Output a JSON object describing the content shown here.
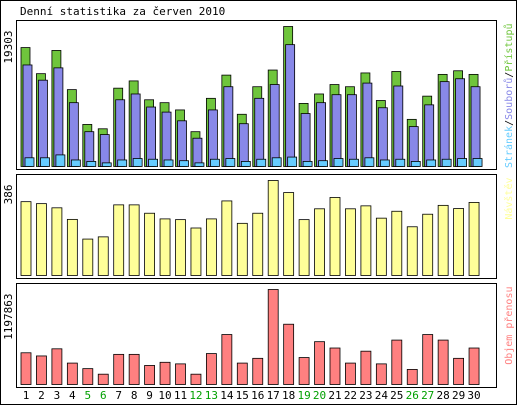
{
  "chart_data": {
    "type": "bar",
    "title": "Denní statistika za červen 2010",
    "colors": {
      "hits": "#6fc53c",
      "files": "#8888e8",
      "pages": "#66ccff",
      "visits": "#ffff99",
      "volume": "#ff8080",
      "weekend": "#00a000",
      "weekday": "#000000",
      "border": "#000000"
    },
    "categories": [
      "1",
      "2",
      "3",
      "4",
      "5",
      "6",
      "7",
      "8",
      "9",
      "10",
      "11",
      "12",
      "13",
      "14",
      "15",
      "16",
      "17",
      "18",
      "19",
      "20",
      "21",
      "22",
      "23",
      "24",
      "25",
      "26",
      "27",
      "28",
      "29",
      "30"
    ],
    "weekend_days": [
      "5",
      "6",
      "12",
      "13",
      "19",
      "20",
      "26",
      "27"
    ],
    "panels": [
      {
        "id": "top",
        "ylabel": "19303",
        "ylim": [
          0,
          19303
        ],
        "legend": [
          {
            "name": "Stránek",
            "color": "pages"
          },
          {
            "name": "Souborů",
            "color": "files"
          },
          {
            "name": "Přístupů",
            "color": "hits"
          }
        ],
        "legend_separator": "/",
        "series": [
          {
            "name": "Přístupů",
            "color": "hits",
            "values": [
              16400,
              12800,
              16000,
              10600,
              5800,
              5200,
              10800,
              11800,
              9200,
              8800,
              7800,
              4800,
              9400,
              12600,
              7200,
              11000,
              13300,
              19303,
              8700,
              10000,
              11300,
              11000,
              12900,
              9100,
              13100,
              6500,
              9700,
              12700,
              13200,
              12700
            ]
          },
          {
            "name": "Souborů",
            "color": "files",
            "values": [
              14000,
              11900,
              13600,
              8800,
              4800,
              4400,
              9200,
              10000,
              8200,
              7500,
              6300,
              3900,
              7800,
              11000,
              5900,
              9400,
              11300,
              16800,
              7300,
              8800,
              9900,
              9900,
              11500,
              8100,
              11100,
              5500,
              8500,
              11700,
              12100,
              11000
            ]
          },
          {
            "name": "Stránek",
            "color": "pages",
            "values": [
              1200,
              1200,
              1600,
              900,
              700,
              500,
              900,
              1100,
              1000,
              900,
              800,
              500,
              1000,
              1100,
              700,
              1000,
              1200,
              1300,
              700,
              800,
              1100,
              1000,
              1200,
              900,
              1000,
              700,
              900,
              1000,
              1100,
              1100
            ]
          }
        ]
      },
      {
        "id": "middle",
        "ylabel": "386",
        "ylim": [
          0,
          386
        ],
        "legend": [
          {
            "name": "Návštěv",
            "color": "visits"
          }
        ],
        "series": [
          {
            "name": "Návštěv",
            "color": "visits",
            "values": [
              300,
              292,
              275,
              228,
              148,
              157,
              287,
              287,
              253,
              230,
              227,
              193,
              230,
              303,
              212,
              253,
              386,
              337,
              227,
              271,
              317,
              271,
              283,
              233,
              261,
              198,
              249,
              285,
              272,
              297
            ]
          }
        ]
      },
      {
        "id": "bottom",
        "ylabel": "1197863",
        "ylim": [
          0,
          1197863
        ],
        "legend": [
          {
            "name": "Objem přenosu",
            "color": "volume"
          }
        ],
        "series": [
          {
            "name": "Objem přenosu",
            "color": "volume",
            "values": [
              400000,
              360000,
              450000,
              270000,
              200000,
              130000,
              380000,
              380000,
              240000,
              280000,
              260000,
              130000,
              390000,
              630000,
              270000,
              330000,
              1197863,
              760000,
              340000,
              540000,
              460000,
              270000,
              420000,
              260000,
              560000,
              190000,
              630000,
              560000,
              330000,
              460000
            ]
          }
        ]
      }
    ]
  }
}
